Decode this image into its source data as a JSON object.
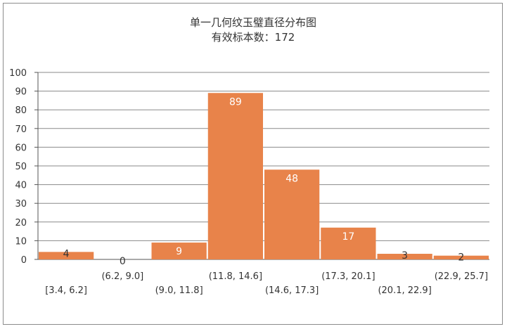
{
  "chart_data": {
    "type": "bar",
    "title": "单一几何纹玉璧直径分布图",
    "subtitle": "有效标本数：172",
    "xlabel": "",
    "ylabel": "",
    "ylim": [
      0,
      100
    ],
    "yticks": [
      0,
      10,
      20,
      30,
      40,
      50,
      60,
      70,
      80,
      90,
      100
    ],
    "grid": true,
    "legend": "none",
    "bar_color": "#e8834a",
    "categories": [
      "[3.4, 6.2]",
      "(6.2, 9.0]",
      "(9.0, 11.8]",
      "(11.8, 14.6]",
      "(14.6, 17.3]",
      "(17.3, 20.1]",
      "(20.1, 22.9]",
      "(22.9, 25.7]"
    ],
    "values": [
      4,
      0,
      9,
      89,
      48,
      17,
      3,
      2
    ]
  }
}
